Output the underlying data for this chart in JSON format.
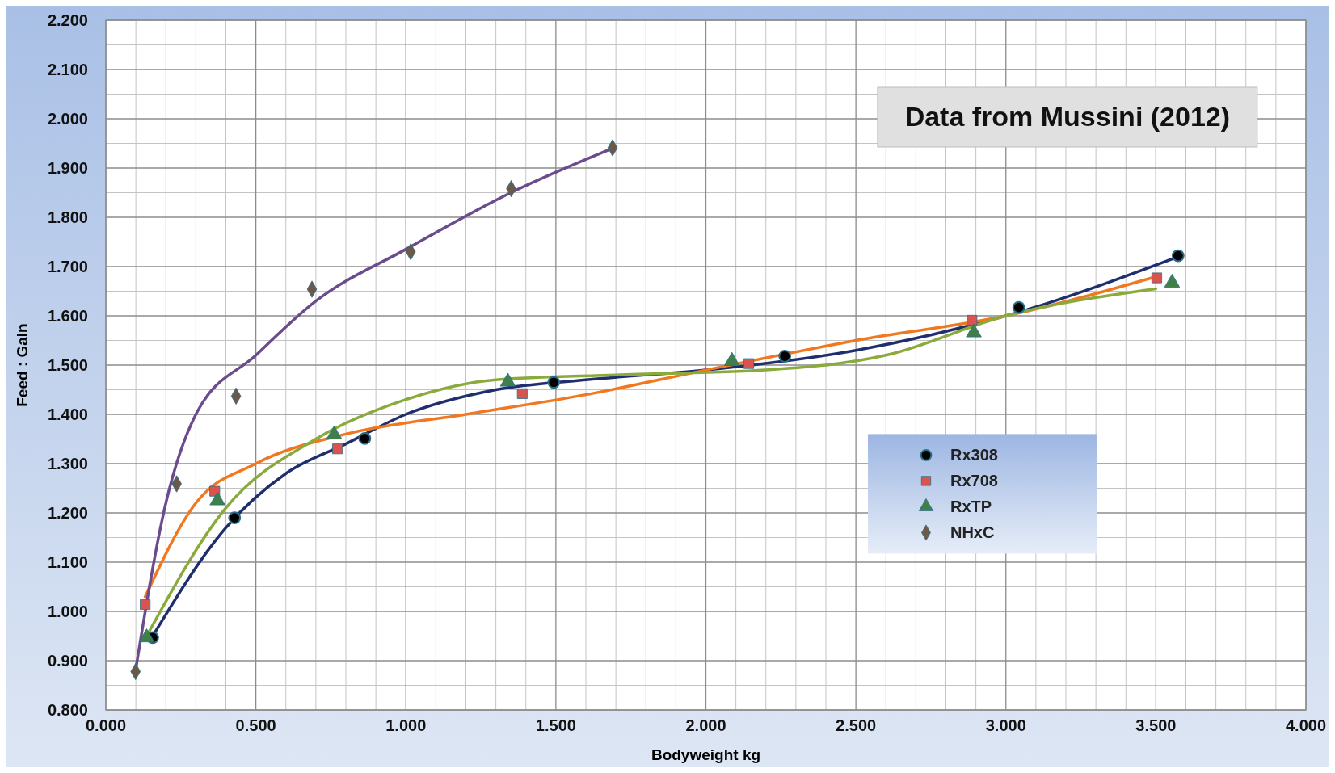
{
  "chart_data": {
    "type": "scatter",
    "xlabel": "Bodyweight kg",
    "ylabel": "Feed : Gain",
    "annotations": [
      "Data from Mussini (2012)"
    ],
    "xlim": [
      0,
      4
    ],
    "ylim": [
      0.8,
      2.2
    ],
    "xticks": [
      {
        "value": 0,
        "label": "0.000"
      },
      {
        "value": 0.5,
        "label": "0.500"
      },
      {
        "value": 1,
        "label": "1.000"
      },
      {
        "value": 1.5,
        "label": "1.500"
      },
      {
        "value": 2,
        "label": "2.000"
      },
      {
        "value": 2.5,
        "label": "2.500"
      },
      {
        "value": 3,
        "label": "3.000"
      },
      {
        "value": 3.5,
        "label": "3.500"
      },
      {
        "value": 4,
        "label": "4.000"
      }
    ],
    "yticks": [
      {
        "value": 0.8,
        "label": "0.800"
      },
      {
        "value": 0.9,
        "label": "0.900"
      },
      {
        "value": 1,
        "label": "1.000"
      },
      {
        "value": 1.1,
        "label": "1.100"
      },
      {
        "value": 1.2,
        "label": "1.200"
      },
      {
        "value": 1.3,
        "label": "1.300"
      },
      {
        "value": 1.4,
        "label": "1.400"
      },
      {
        "value": 1.5,
        "label": "1.500"
      },
      {
        "value": 1.6,
        "label": "1.600"
      },
      {
        "value": 1.7,
        "label": "1.700"
      },
      {
        "value": 1.8,
        "label": "1.800"
      },
      {
        "value": 1.9,
        "label": "1.900"
      },
      {
        "value": 2,
        "label": "2.000"
      },
      {
        "value": 2.1,
        "label": "2.100"
      },
      {
        "value": 2.2,
        "label": "2.200"
      }
    ],
    "grid": true,
    "legend": "right",
    "series": [
      {
        "type": "line",
        "color": "#1f2f6e",
        "line_style": "solid",
        "marker": "none",
        "x": [
          0.156,
          0.4,
          0.6,
          0.8,
          1.0,
          1.3,
          1.6,
          2.0,
          2.5,
          3.0,
          3.574
        ],
        "values": [
          0.95,
          1.17,
          1.28,
          1.34,
          1.4,
          1.45,
          1.47,
          1.49,
          1.53,
          1.6,
          1.72
        ]
      },
      {
        "type": "line",
        "color": "#f07820",
        "line_style": "solid",
        "marker": "none",
        "x": [
          0.131,
          0.3,
          0.5,
          0.8,
          1.2,
          1.6,
          2.0,
          2.5,
          3.0,
          3.503
        ],
        "values": [
          1.03,
          1.22,
          1.3,
          1.36,
          1.4,
          1.44,
          1.49,
          1.55,
          1.6,
          1.68
        ]
      },
      {
        "type": "line",
        "color": "#8aaa3c",
        "line_style": "solid",
        "marker": "none",
        "x": [
          0.136,
          0.4,
          0.7,
          1.0,
          1.3,
          1.7,
          2.2,
          2.6,
          3.0,
          3.5
        ],
        "values": [
          0.95,
          1.21,
          1.35,
          1.43,
          1.47,
          1.48,
          1.49,
          1.52,
          1.6,
          1.655
        ]
      },
      {
        "type": "line",
        "color": "#6a4c8c",
        "line_style": "solid",
        "marker": "none",
        "x": [
          0.099,
          0.2,
          0.3,
          0.5,
          0.7,
          1.0,
          1.35,
          1.689
        ],
        "values": [
          0.88,
          1.22,
          1.4,
          1.52,
          1.63,
          1.735,
          1.85,
          1.94
        ]
      },
      {
        "name": "Rx308",
        "color": "#000000",
        "marker": "circle",
        "x": [
          0.156,
          0.429,
          0.863,
          1.493,
          2.263,
          3.043,
          3.574
        ],
        "values": [
          0.947,
          1.19,
          1.351,
          1.465,
          1.518,
          1.617,
          1.722
        ]
      },
      {
        "name": "Rx708",
        "color": "#d9534f",
        "marker": "square",
        "x": [
          0.131,
          0.363,
          0.772,
          1.388,
          2.143,
          2.887,
          3.503
        ],
        "values": [
          1.014,
          1.244,
          1.33,
          1.442,
          1.503,
          1.591,
          1.677
        ]
      },
      {
        "name": "RxTP",
        "color": "#3f7f4a",
        "marker": "triangle",
        "x": [
          0.136,
          0.372,
          0.761,
          1.34,
          2.087,
          2.893,
          3.554
        ],
        "values": [
          0.947,
          1.225,
          1.359,
          1.466,
          1.508,
          1.566,
          1.667
        ]
      },
      {
        "name": "NHxC",
        "color": "#6b5a4a",
        "marker": "diamond",
        "x": [
          0.099,
          0.236,
          0.434,
          0.687,
          1.016,
          1.351,
          1.689
        ],
        "values": [
          0.878,
          1.259,
          1.437,
          1.654,
          1.73,
          1.858,
          1.941
        ]
      }
    ]
  }
}
